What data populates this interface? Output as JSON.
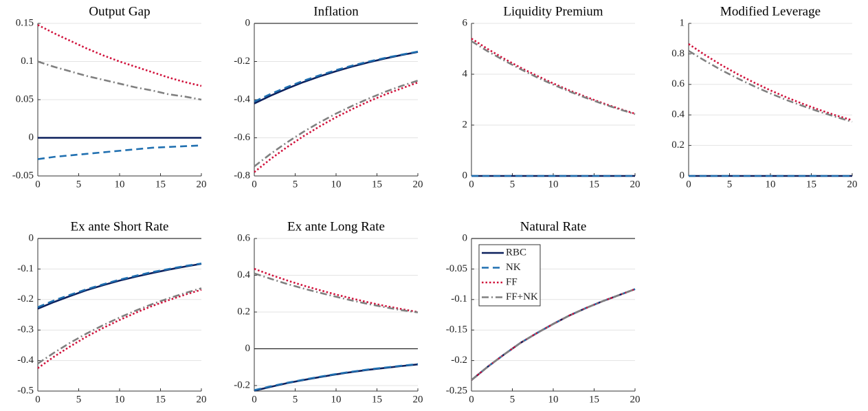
{
  "chart_data": [
    {
      "type": "line",
      "title": "Output Gap",
      "x": [
        0,
        2,
        4,
        6,
        8,
        10,
        12,
        14,
        16,
        18,
        20
      ],
      "xlim": [
        0,
        20
      ],
      "xticks": [
        0,
        5,
        10,
        15,
        20
      ],
      "ylim": [
        -0.05,
        0.15
      ],
      "yticks": [
        -0.05,
        0,
        0.05,
        0.1,
        0.15
      ],
      "grid": true,
      "series": [
        {
          "color": "#0b1f5c",
          "style": "solid",
          "values": [
            0,
            0,
            0,
            0,
            0,
            0,
            0,
            0,
            0,
            0,
            0
          ]
        },
        {
          "color": "#1f6fb0",
          "style": "dashed",
          "values": [
            -0.028,
            -0.025,
            -0.023,
            -0.021,
            -0.019,
            -0.017,
            -0.015,
            -0.013,
            -0.012,
            -0.011,
            -0.01
          ]
        },
        {
          "color": "#d0103a",
          "style": "dotted",
          "values": [
            0.148,
            0.137,
            0.127,
            0.117,
            0.108,
            0.1,
            0.093,
            0.086,
            0.079,
            0.073,
            0.068
          ]
        },
        {
          "color": "#808080",
          "style": "dashdot",
          "values": [
            0.1,
            0.093,
            0.087,
            0.081,
            0.076,
            0.071,
            0.066,
            0.062,
            0.057,
            0.054,
            0.05
          ]
        }
      ]
    },
    {
      "type": "line",
      "title": "Inflation",
      "x": [
        0,
        2,
        4,
        6,
        8,
        10,
        12,
        14,
        16,
        18,
        20
      ],
      "xlim": [
        0,
        20
      ],
      "xticks": [
        0,
        5,
        10,
        15,
        20
      ],
      "ylim": [
        -0.8,
        0
      ],
      "yticks": [
        -0.8,
        -0.6,
        -0.4,
        -0.2,
        0
      ],
      "grid": true,
      "series": [
        {
          "color": "#0b1f5c",
          "style": "solid",
          "values": [
            -0.42,
            -0.379,
            -0.342,
            -0.308,
            -0.278,
            -0.251,
            -0.226,
            -0.204,
            -0.184,
            -0.166,
            -0.15
          ]
        },
        {
          "color": "#1f6fb0",
          "style": "dashed",
          "values": [
            -0.41,
            -0.37,
            -0.334,
            -0.301,
            -0.272,
            -0.245,
            -0.221,
            -0.2,
            -0.181,
            -0.164,
            -0.148
          ]
        },
        {
          "color": "#d0103a",
          "style": "dotted",
          "values": [
            -0.78,
            -0.711,
            -0.649,
            -0.592,
            -0.54,
            -0.492,
            -0.449,
            -0.409,
            -0.373,
            -0.341,
            -0.31
          ]
        },
        {
          "color": "#808080",
          "style": "dashdot",
          "values": [
            -0.75,
            -0.684,
            -0.624,
            -0.569,
            -0.519,
            -0.473,
            -0.432,
            -0.394,
            -0.359,
            -0.328,
            -0.3
          ]
        }
      ]
    },
    {
      "type": "line",
      "title": "Liquidity Premium",
      "x": [
        0,
        2,
        4,
        6,
        8,
        10,
        12,
        14,
        16,
        18,
        20
      ],
      "xlim": [
        0,
        20
      ],
      "xticks": [
        0,
        5,
        10,
        15,
        20
      ],
      "ylim": [
        0,
        6
      ],
      "yticks": [
        0,
        2,
        4,
        6
      ],
      "grid": true,
      "series": [
        {
          "color": "#0b1f5c",
          "style": "solid",
          "values": [
            0,
            0,
            0,
            0,
            0,
            0,
            0,
            0,
            0,
            0,
            0
          ]
        },
        {
          "color": "#1f6fb0",
          "style": "dashed",
          "values": [
            0,
            0,
            0,
            0,
            0,
            0,
            0,
            0,
            0,
            0,
            0
          ]
        },
        {
          "color": "#d0103a",
          "style": "dotted",
          "values": [
            5.4,
            4.99,
            4.61,
            4.26,
            3.94,
            3.64,
            3.36,
            3.11,
            2.87,
            2.65,
            2.45
          ]
        },
        {
          "color": "#808080",
          "style": "dashdot",
          "values": [
            5.3,
            4.9,
            4.54,
            4.2,
            3.88,
            3.59,
            3.32,
            3.07,
            2.84,
            2.63,
            2.43
          ]
        }
      ]
    },
    {
      "type": "line",
      "title": "Modified Leverage",
      "x": [
        0,
        2,
        4,
        6,
        8,
        10,
        12,
        14,
        16,
        18,
        20
      ],
      "xlim": [
        0,
        20
      ],
      "xticks": [
        0,
        5,
        10,
        15,
        20
      ],
      "ylim": [
        0,
        1
      ],
      "yticks": [
        0,
        0.2,
        0.4,
        0.6,
        0.8,
        1
      ],
      "grid": true,
      "series": [
        {
          "color": "#0b1f5c",
          "style": "solid",
          "values": [
            0,
            0,
            0,
            0,
            0,
            0,
            0,
            0,
            0,
            0,
            0
          ]
        },
        {
          "color": "#1f6fb0",
          "style": "dashed",
          "values": [
            0,
            0,
            0,
            0,
            0,
            0,
            0,
            0,
            0,
            0,
            0
          ]
        },
        {
          "color": "#d0103a",
          "style": "dotted",
          "values": [
            0.865,
            0.793,
            0.727,
            0.667,
            0.612,
            0.561,
            0.514,
            0.472,
            0.433,
            0.397,
            0.365
          ]
        },
        {
          "color": "#808080",
          "style": "dashdot",
          "values": [
            0.82,
            0.755,
            0.694,
            0.639,
            0.588,
            0.541,
            0.497,
            0.458,
            0.421,
            0.387,
            0.355
          ]
        }
      ]
    },
    {
      "type": "line",
      "title": "Ex ante Short Rate",
      "x": [
        0,
        2,
        4,
        6,
        8,
        10,
        12,
        14,
        16,
        18,
        20
      ],
      "xlim": [
        0,
        20
      ],
      "xticks": [
        0,
        5,
        10,
        15,
        20
      ],
      "ylim": [
        -0.5,
        0
      ],
      "yticks": [
        -0.5,
        -0.4,
        -0.3,
        -0.2,
        -0.1,
        0
      ],
      "grid": true,
      "series": [
        {
          "color": "#0b1f5c",
          "style": "solid",
          "values": [
            -0.23,
            -0.208,
            -0.188,
            -0.169,
            -0.153,
            -0.138,
            -0.125,
            -0.113,
            -0.102,
            -0.092,
            -0.083
          ]
        },
        {
          "color": "#1f6fb0",
          "style": "dashed",
          "values": [
            -0.225,
            -0.203,
            -0.184,
            -0.166,
            -0.15,
            -0.135,
            -0.122,
            -0.11,
            -0.1,
            -0.09,
            -0.082
          ]
        },
        {
          "color": "#d0103a",
          "style": "dotted",
          "values": [
            -0.425,
            -0.387,
            -0.353,
            -0.321,
            -0.293,
            -0.267,
            -0.243,
            -0.221,
            -0.202,
            -0.184,
            -0.168
          ]
        },
        {
          "color": "#808080",
          "style": "dashdot",
          "values": [
            -0.41,
            -0.374,
            -0.341,
            -0.311,
            -0.284,
            -0.259,
            -0.236,
            -0.215,
            -0.196,
            -0.179,
            -0.163
          ]
        }
      ]
    },
    {
      "type": "line",
      "title": "Ex ante Long Rate",
      "x": [
        0,
        2,
        4,
        6,
        8,
        10,
        12,
        14,
        16,
        18,
        20
      ],
      "xlim": [
        0,
        20
      ],
      "xticks": [
        0,
        5,
        10,
        15,
        20
      ],
      "ylim": [
        -0.23,
        0.6
      ],
      "yticks": [
        -0.2,
        0,
        0.2,
        0.4,
        0.6
      ],
      "grid": true,
      "series": [
        {
          "color": "#0b1f5c",
          "style": "solid",
          "values": [
            -0.228,
            -0.207,
            -0.187,
            -0.17,
            -0.154,
            -0.139,
            -0.126,
            -0.114,
            -0.104,
            -0.094,
            -0.085
          ]
        },
        {
          "color": "#1f6fb0",
          "style": "dashed",
          "values": [
            -0.225,
            -0.204,
            -0.185,
            -0.168,
            -0.152,
            -0.137,
            -0.124,
            -0.112,
            -0.102,
            -0.092,
            -0.083
          ]
        },
        {
          "color": "#d0103a",
          "style": "dotted",
          "values": [
            0.435,
            0.402,
            0.372,
            0.344,
            0.319,
            0.295,
            0.273,
            0.252,
            0.233,
            0.216,
            0.2
          ]
        },
        {
          "color": "#808080",
          "style": "dashdot",
          "values": [
            0.41,
            0.381,
            0.353,
            0.328,
            0.305,
            0.283,
            0.262,
            0.243,
            0.226,
            0.21,
            0.198
          ]
        }
      ]
    },
    {
      "type": "line",
      "title": "Natural Rate",
      "x": [
        0,
        2,
        4,
        6,
        8,
        10,
        12,
        14,
        16,
        18,
        20
      ],
      "xlim": [
        0,
        20
      ],
      "xticks": [
        0,
        5,
        10,
        15,
        20
      ],
      "ylim": [
        -0.25,
        0
      ],
      "yticks": [
        -0.25,
        -0.2,
        -0.15,
        -0.1,
        -0.05,
        0
      ],
      "grid": true,
      "legend": "upper left",
      "series": [
        {
          "name": "RBC",
          "color": "#0b1f5c",
          "style": "solid",
          "values": [
            -0.232,
            -0.21,
            -0.19,
            -0.171,
            -0.155,
            -0.14,
            -0.126,
            -0.114,
            -0.103,
            -0.093,
            -0.083
          ]
        },
        {
          "name": "NK",
          "color": "#1f6fb0",
          "style": "dashed",
          "values": [
            -0.232,
            -0.21,
            -0.19,
            -0.171,
            -0.155,
            -0.14,
            -0.126,
            -0.114,
            -0.103,
            -0.093,
            -0.083
          ]
        },
        {
          "name": "FF",
          "color": "#d0103a",
          "style": "dotted",
          "values": [
            -0.232,
            -0.21,
            -0.19,
            -0.171,
            -0.155,
            -0.14,
            -0.126,
            -0.114,
            -0.103,
            -0.093,
            -0.083
          ]
        },
        {
          "name": "FF+NK",
          "color": "#808080",
          "style": "dashdot",
          "values": [
            -0.232,
            -0.21,
            -0.19,
            -0.171,
            -0.155,
            -0.14,
            -0.126,
            -0.114,
            -0.103,
            -0.093,
            -0.083
          ]
        }
      ]
    }
  ]
}
